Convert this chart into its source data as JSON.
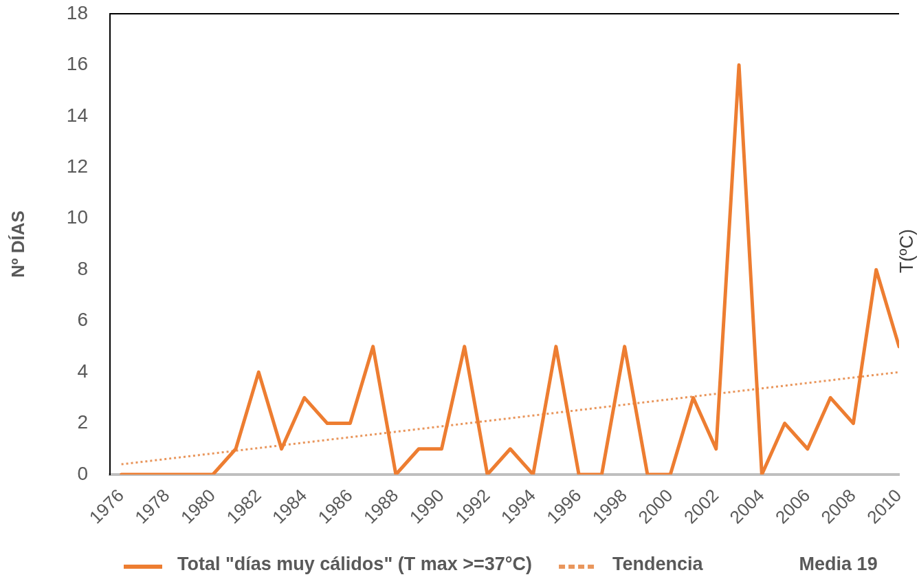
{
  "chart_data": {
    "type": "line",
    "ylabel": "Nº DÍAS",
    "y2label": "T(ºC)",
    "x": [
      1976,
      1977,
      1978,
      1979,
      1980,
      1981,
      1982,
      1983,
      1984,
      1985,
      1986,
      1987,
      1988,
      1989,
      1990,
      1991,
      1992,
      1993,
      1994,
      1995,
      1996,
      1997,
      1998,
      1999,
      2000,
      2001,
      2002,
      2003,
      2004,
      2005,
      2006,
      2007,
      2008,
      2009,
      2010
    ],
    "xlim": [
      1975.5,
      2010
    ],
    "xticks": [
      1976,
      1978,
      1980,
      1982,
      1984,
      1986,
      1988,
      1990,
      1992,
      1994,
      1996,
      1998,
      2000,
      2002,
      2004,
      2006,
      2008,
      2010
    ],
    "ylim": [
      0,
      18
    ],
    "yticks": [
      0,
      2,
      4,
      6,
      8,
      10,
      12,
      14,
      16,
      18
    ],
    "series": [
      {
        "name": "Total \"días muy cálidos\" (T max >=37°C)",
        "color": "#ed7d31",
        "values": [
          0,
          0,
          0,
          0,
          0,
          1,
          4,
          1,
          3,
          2,
          2,
          5,
          0,
          1,
          1,
          5,
          0,
          1,
          0,
          5,
          0,
          0,
          5,
          0,
          0,
          3,
          1,
          16,
          0,
          2,
          1,
          3,
          2,
          8,
          5
        ]
      },
      {
        "name": "Tendencia",
        "type": "line",
        "line_style": "dotted",
        "color": "#e9965c",
        "x": [
          1976,
          2010
        ],
        "values": [
          0.4,
          4.0
        ]
      }
    ],
    "legend": "bottom",
    "marker": "none",
    "line_style": "solid",
    "annotations": [
      "Media 19"
    ]
  }
}
